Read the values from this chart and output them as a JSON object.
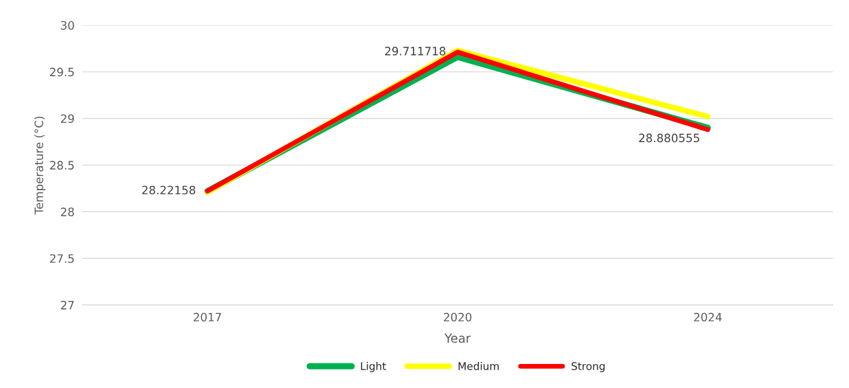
{
  "chart_data": {
    "type": "line",
    "xlabel": "Year",
    "ylabel": "Temperature (°C)",
    "categories": [
      "2017",
      "2020",
      "2024"
    ],
    "series": [
      {
        "name": "Light",
        "color": "#00b050",
        "values": [
          28.22,
          29.66,
          28.9
        ]
      },
      {
        "name": "Medium",
        "color": "#ffff00",
        "values": [
          28.21,
          29.73,
          29.02
        ]
      },
      {
        "name": "Strong",
        "color": "#ff0000",
        "values": [
          28.22158,
          29.711718,
          28.880555
        ],
        "value_labels": [
          "28.22158",
          "29.711718",
          "28.880555"
        ]
      }
    ],
    "ylim": [
      27,
      30
    ],
    "yticks": [
      27,
      27.5,
      28,
      28.5,
      29,
      29.5,
      30
    ],
    "grid": "y",
    "legend": "bottom",
    "marker": "none",
    "line_style": "solid"
  }
}
